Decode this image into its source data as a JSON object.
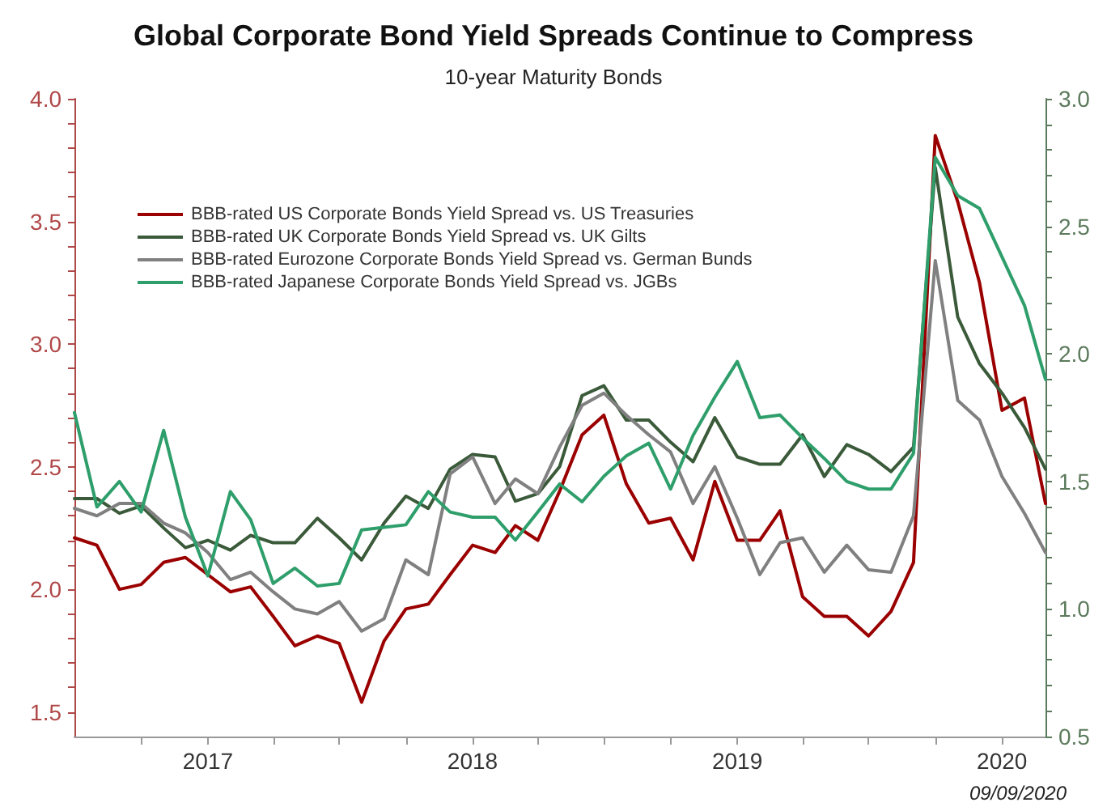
{
  "chart_data": {
    "type": "line",
    "title": "Global Corporate Bond Yield Spreads Continue to Compress",
    "subtitle": "10-year Maturity Bonds",
    "annotations": [
      "09/09/2020"
    ],
    "x": [
      "2016-07",
      "2016-08",
      "2016-09",
      "2016-10",
      "2016-11",
      "2016-12",
      "2017-01",
      "2017-02",
      "2017-03",
      "2017-04",
      "2017-05",
      "2017-06",
      "2017-07",
      "2017-08",
      "2017-09",
      "2017-10",
      "2017-11",
      "2017-12",
      "2018-01",
      "2018-02",
      "2018-03",
      "2018-04",
      "2018-05",
      "2018-06",
      "2018-07",
      "2018-08",
      "2018-09",
      "2018-10",
      "2018-11",
      "2018-12",
      "2019-01",
      "2019-02",
      "2019-03",
      "2019-04",
      "2019-05",
      "2019-06",
      "2019-07",
      "2019-08",
      "2019-09",
      "2019-10",
      "2019-11",
      "2019-12",
      "2020-01",
      "2020-02",
      "2020-03"
    ],
    "series": [
      {
        "name": "BBB-rated US Corporate Bonds Yield Spread vs. US Treasuries",
        "color": "#9b0000",
        "values": [
          2.21,
          2.18,
          2.0,
          2.02,
          2.11,
          2.13,
          2.06,
          1.99,
          2.01,
          1.89,
          1.77,
          1.81,
          1.78,
          1.54,
          1.79,
          1.92,
          1.94,
          2.06,
          2.18,
          2.15,
          2.26,
          2.2,
          2.4,
          2.63,
          2.71,
          2.43,
          2.27,
          2.29,
          2.12,
          2.44,
          2.2,
          2.2,
          2.32,
          1.97,
          1.89,
          1.89,
          1.81,
          1.91,
          2.11,
          3.85,
          3.58,
          3.25,
          2.73,
          2.78,
          2.35
        ]
      },
      {
        "name": "BBB-rated UK Corporate Bonds Yield Spread vs. UK Gilts",
        "color": "#3a5a3a",
        "values": [
          2.37,
          2.37,
          2.31,
          2.34,
          2.25,
          2.17,
          2.2,
          2.16,
          2.22,
          2.19,
          2.19,
          2.29,
          2.21,
          2.12,
          2.27,
          2.38,
          2.33,
          2.49,
          2.55,
          2.54,
          2.36,
          2.39,
          2.5,
          2.79,
          2.83,
          2.69,
          2.69,
          2.6,
          2.52,
          2.7,
          2.54,
          2.51,
          2.51,
          2.63,
          2.46,
          2.59,
          2.55,
          2.48,
          2.58,
          3.72,
          3.11,
          2.92,
          2.8,
          2.66,
          2.49
        ]
      },
      {
        "name": "BBB-rated Eurozone Corporate Bonds Yield Spread vs. German Bunds",
        "color": "#808080",
        "values": [
          2.33,
          2.3,
          2.35,
          2.35,
          2.27,
          2.23,
          2.15,
          2.04,
          2.07,
          1.99,
          1.92,
          1.9,
          1.95,
          1.83,
          1.88,
          2.12,
          2.06,
          2.47,
          2.54,
          2.35,
          2.45,
          2.39,
          2.58,
          2.75,
          2.8,
          2.71,
          2.63,
          2.56,
          2.35,
          2.5,
          2.29,
          2.06,
          2.19,
          2.21,
          2.07,
          2.18,
          2.08,
          2.07,
          2.3,
          3.34,
          2.77,
          2.69,
          2.46,
          2.31,
          2.15
        ]
      },
      {
        "name": "BBB-rated Japanese Corporate Bonds Yield Spread vs. JGBs",
        "color": "#2e9e6b",
        "axis": "y2",
        "values": [
          1.77,
          1.4,
          1.5,
          1.38,
          1.7,
          1.36,
          1.13,
          1.46,
          1.35,
          1.1,
          1.16,
          1.09,
          1.1,
          1.31,
          1.32,
          1.33,
          1.46,
          1.38,
          1.36,
          1.36,
          1.27,
          1.38,
          1.49,
          1.42,
          1.52,
          1.6,
          1.65,
          1.47,
          1.68,
          1.83,
          1.97,
          1.75,
          1.76,
          1.67,
          1.59,
          1.5,
          1.47,
          1.47,
          1.61,
          2.77,
          2.62,
          2.57,
          2.38,
          2.19,
          1.9
        ]
      }
    ],
    "xlim": [
      "2016-07",
      "2020-03"
    ],
    "xticks": [
      {
        "value": "2016-10",
        "label": null
      },
      {
        "value": "2017-01",
        "label": "2017"
      },
      {
        "value": "2017-04",
        "label": null
      },
      {
        "value": "2017-07",
        "label": null
      },
      {
        "value": "2017-10",
        "label": null
      },
      {
        "value": "2018-01",
        "label": "2018"
      },
      {
        "value": "2018-04",
        "label": null
      },
      {
        "value": "2018-07",
        "label": null
      },
      {
        "value": "2018-10",
        "label": null
      },
      {
        "value": "2019-01",
        "label": "2019"
      },
      {
        "value": "2019-04",
        "label": null
      },
      {
        "value": "2019-07",
        "label": null
      },
      {
        "value": "2019-10",
        "label": null
      },
      {
        "value": "2020-01",
        "label": "2020"
      }
    ],
    "ylim": [
      1.4,
      4.0
    ],
    "yticks": [
      {
        "value": 1.5,
        "label": "1.5"
      },
      {
        "value": 1.6,
        "label": null
      },
      {
        "value": 1.7,
        "label": null
      },
      {
        "value": 1.8,
        "label": null
      },
      {
        "value": 1.9,
        "label": null
      },
      {
        "value": 2.0,
        "label": "2.0"
      },
      {
        "value": 2.1,
        "label": null
      },
      {
        "value": 2.2,
        "label": null
      },
      {
        "value": 2.3,
        "label": null
      },
      {
        "value": 2.4,
        "label": null
      },
      {
        "value": 2.5,
        "label": "2.5"
      },
      {
        "value": 2.6,
        "label": null
      },
      {
        "value": 2.7,
        "label": null
      },
      {
        "value": 2.8,
        "label": null
      },
      {
        "value": 2.9,
        "label": null
      },
      {
        "value": 3.0,
        "label": "3.0"
      },
      {
        "value": 3.1,
        "label": null
      },
      {
        "value": 3.2,
        "label": null
      },
      {
        "value": 3.3,
        "label": null
      },
      {
        "value": 3.4,
        "label": null
      },
      {
        "value": 3.5,
        "label": "3.5"
      },
      {
        "value": 3.6,
        "label": null
      },
      {
        "value": 3.7,
        "label": null
      },
      {
        "value": 3.8,
        "label": null
      },
      {
        "value": 3.9,
        "label": null
      },
      {
        "value": 4.0,
        "label": "4.0"
      }
    ],
    "y2lim": [
      0.5,
      3.0
    ],
    "y2ticks": [
      {
        "value": 0.5,
        "label": "0.5"
      },
      {
        "value": 0.6,
        "label": null
      },
      {
        "value": 0.7,
        "label": null
      },
      {
        "value": 0.8,
        "label": null
      },
      {
        "value": 0.9,
        "label": null
      },
      {
        "value": 1.0,
        "label": "1.0"
      },
      {
        "value": 1.1,
        "label": null
      },
      {
        "value": 1.2,
        "label": null
      },
      {
        "value": 1.3,
        "label": null
      },
      {
        "value": 1.4,
        "label": null
      },
      {
        "value": 1.5,
        "label": "1.5"
      },
      {
        "value": 1.6,
        "label": null
      },
      {
        "value": 1.7,
        "label": null
      },
      {
        "value": 1.8,
        "label": null
      },
      {
        "value": 1.9,
        "label": null
      },
      {
        "value": 2.0,
        "label": "2.0"
      },
      {
        "value": 2.1,
        "label": null
      },
      {
        "value": 2.2,
        "label": null
      },
      {
        "value": 2.3,
        "label": null
      },
      {
        "value": 2.4,
        "label": null
      },
      {
        "value": 2.5,
        "label": "2.5"
      },
      {
        "value": 2.6,
        "label": null
      },
      {
        "value": 2.7,
        "label": null
      },
      {
        "value": 2.8,
        "label": null
      },
      {
        "value": 2.9,
        "label": null
      },
      {
        "value": 3.0,
        "label": "3.0"
      }
    ],
    "legend": "top left",
    "grid": false,
    "marker": "none",
    "line_style": "solid"
  }
}
